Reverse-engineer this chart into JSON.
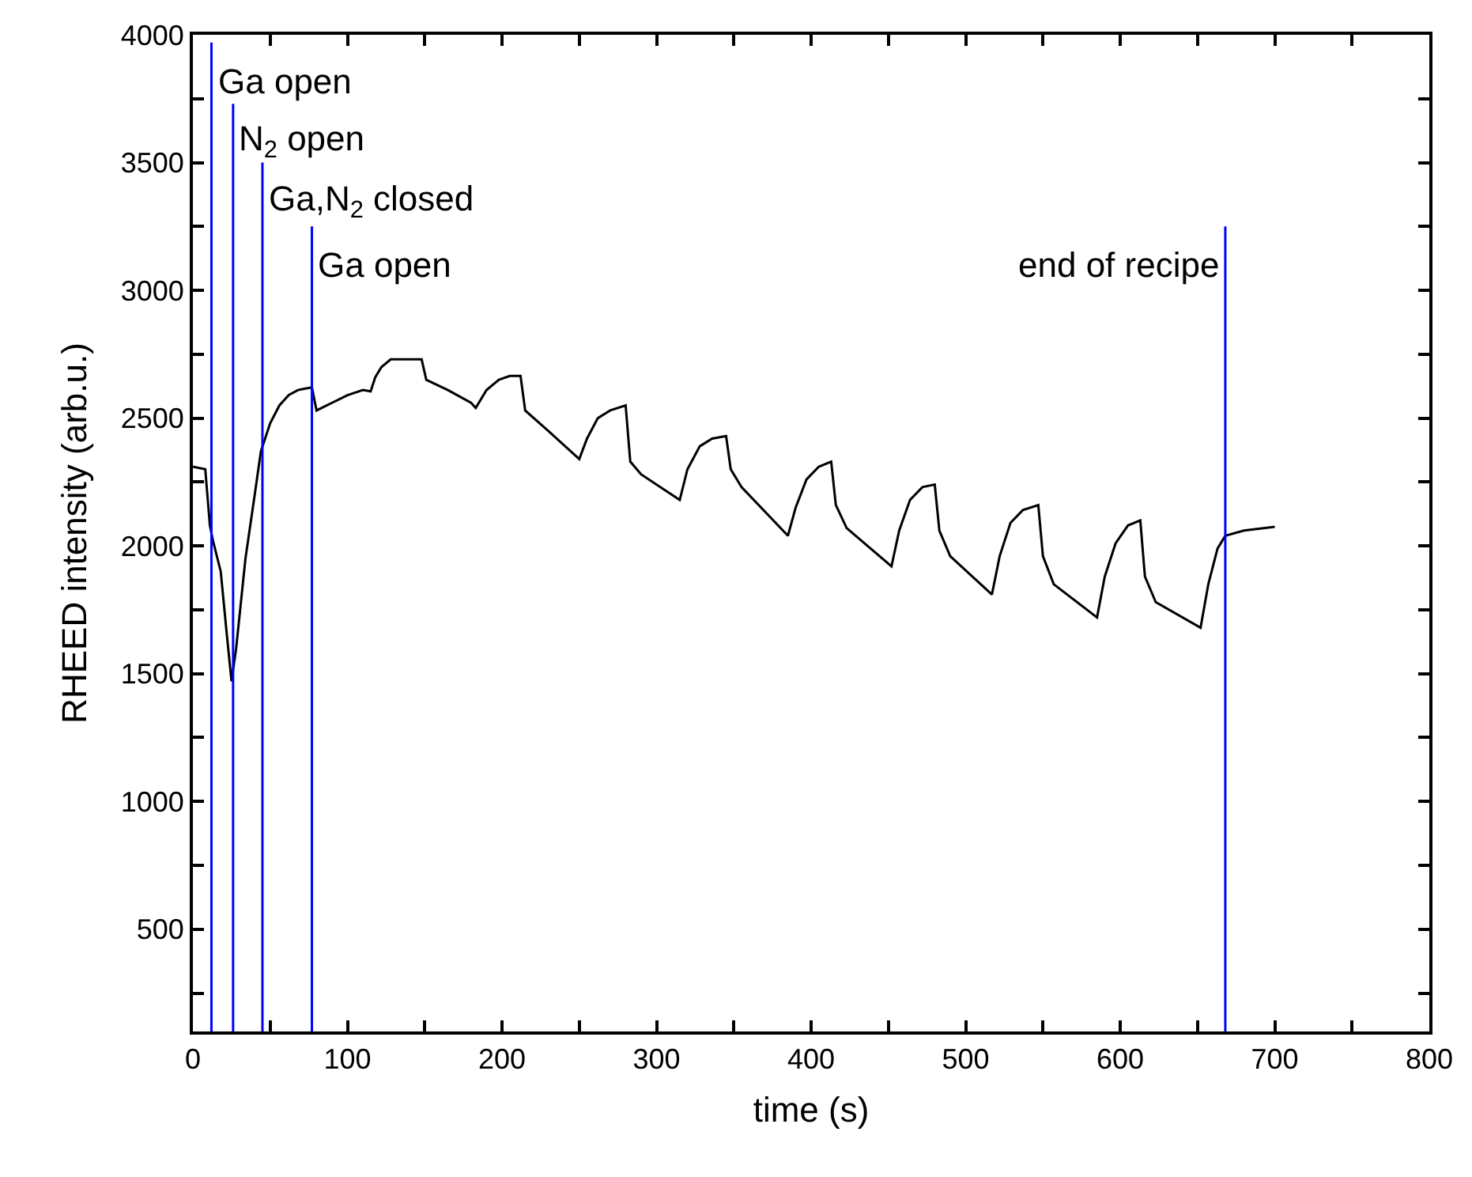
{
  "chart_data": {
    "type": "line",
    "xlabel": "time (s)",
    "ylabel": "RHEED intensity (arb.u.)",
    "x": [
      0,
      8,
      11,
      13,
      18,
      22,
      25,
      28,
      34,
      40,
      44,
      50,
      56,
      62,
      68,
      72,
      77,
      80,
      90,
      100,
      110,
      115,
      118,
      122,
      128,
      135,
      148,
      151,
      165,
      180,
      183,
      190,
      198,
      205,
      212,
      215,
      230,
      250,
      255,
      262,
      270,
      280,
      283,
      290,
      315,
      320,
      328,
      336,
      345,
      348,
      355,
      385,
      390,
      397,
      405,
      413,
      416,
      423,
      452,
      457,
      464,
      472,
      480,
      483,
      490,
      517,
      522,
      529,
      537,
      547,
      550,
      557,
      585,
      590,
      597,
      605,
      613,
      616,
      623,
      652,
      657,
      663,
      668,
      680,
      700
    ],
    "series": [
      {
        "color": "#000000",
        "values": [
          2310,
          2300,
          2080,
          2020,
          1900,
          1650,
          1470,
          1600,
          1950,
          2200,
          2370,
          2480,
          2550,
          2590,
          2610,
          2615,
          2620,
          2530,
          2560,
          2590,
          2610,
          2605,
          2660,
          2700,
          2730,
          2730,
          2730,
          2650,
          2610,
          2560,
          2540,
          2610,
          2650,
          2665,
          2665,
          2530,
          2450,
          2340,
          2420,
          2500,
          2530,
          2550,
          2330,
          2280,
          2180,
          2300,
          2390,
          2420,
          2430,
          2300,
          2230,
          2040,
          2150,
          2260,
          2310,
          2330,
          2160,
          2070,
          1920,
          2060,
          2180,
          2230,
          2240,
          2060,
          1960,
          1810,
          1960,
          2090,
          2140,
          2160,
          1960,
          1850,
          1720,
          1880,
          2010,
          2080,
          2100,
          1880,
          1780,
          1680,
          1850,
          1990,
          2040,
          2060,
          2075
        ]
      }
    ],
    "xlim": [
      0,
      800
    ],
    "ylim": [
      100,
      4000
    ],
    "xticks": [
      0,
      {
        "value": 50,
        "label": null
      },
      100,
      {
        "value": 150,
        "label": null
      },
      200,
      {
        "value": 250,
        "label": null
      },
      300,
      {
        "value": 350,
        "label": null
      },
      400,
      {
        "value": 450,
        "label": null
      },
      500,
      {
        "value": 550,
        "label": null
      },
      600,
      {
        "value": 650,
        "label": null
      },
      700,
      {
        "value": 750,
        "label": null
      },
      800
    ],
    "yticks": [
      {
        "value": 250,
        "label": null
      },
      500,
      {
        "value": 750,
        "label": null
      },
      1000,
      {
        "value": 1250,
        "label": null
      },
      1500,
      {
        "value": 1750,
        "label": null
      },
      2000,
      {
        "value": 2250,
        "label": null
      },
      2500,
      {
        "value": 2750,
        "label": null
      },
      3000,
      {
        "value": 3250,
        "label": null
      },
      3500,
      {
        "value": 3750,
        "label": null
      },
      4000
    ],
    "ref_lines": [
      {
        "axis": "x",
        "value": 12,
        "color": "#0000ff"
      },
      {
        "axis": "x",
        "value": 26,
        "color": "#0000ff"
      },
      {
        "axis": "x",
        "value": 45,
        "color": "#0000ff"
      },
      {
        "axis": "x",
        "value": 77,
        "color": "#0000ff"
      },
      {
        "axis": "x",
        "value": 668,
        "color": "#0000ff"
      }
    ],
    "annotations": [
      {
        "text": "Ga open",
        "x": 12,
        "y": 3820
      },
      {
        "text": "N$_{2}$ open",
        "x": 26,
        "y": 3580
      },
      {
        "text": "Ga,N$_{2}$ closed",
        "x": 45,
        "y": 3350
      },
      {
        "text": "Ga open",
        "x": 77,
        "y": 3100
      },
      {
        "text": "end of recipe",
        "x": 668,
        "y": 3100
      }
    ],
    "marker": "none",
    "line_style": "solid"
  }
}
